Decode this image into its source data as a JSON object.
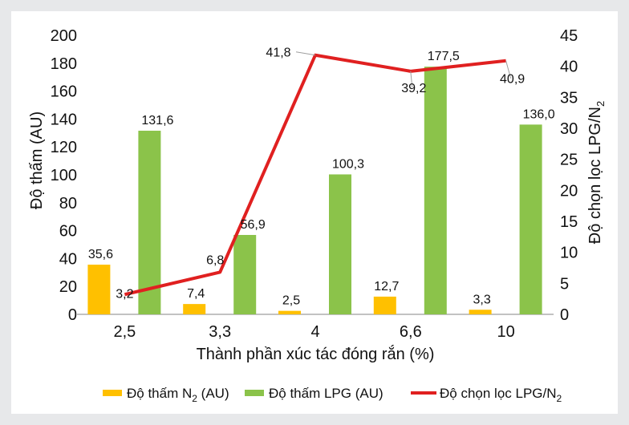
{
  "chart_data": {
    "type": "bar",
    "title": "",
    "categories": [
      "2,5",
      "3,3",
      "4",
      "6,6",
      "10"
    ],
    "series": [
      {
        "name": "Độ thấm N2 (AU)",
        "type": "bar",
        "axis": "left",
        "color": "#ffc000",
        "values": [
          35.6,
          7.4,
          2.5,
          12.7,
          3.3
        ],
        "labels": [
          "35,6",
          "7,4",
          "2,5",
          "12,7",
          "3,3"
        ]
      },
      {
        "name": "Độ thấm LPG (AU)",
        "type": "bar",
        "axis": "left",
        "color": "#8bc34a",
        "values": [
          131.6,
          56.9,
          100.3,
          177.5,
          136.0
        ],
        "labels": [
          "131,6",
          "56,9",
          "100,3",
          "177,5",
          "136,0"
        ]
      },
      {
        "name": "Độ chọn lọc LPG/N2",
        "type": "line",
        "axis": "right",
        "color": "#e02020",
        "values": [
          3.2,
          6.8,
          41.8,
          39.2,
          40.9
        ],
        "labels": [
          "3,2",
          "6,8",
          "41,8",
          "39,2",
          "40,9"
        ]
      }
    ],
    "xlabel": "Thành phần xúc tác đóng rắn (%)",
    "ylabel": "Độ thấm (AU)",
    "y2label": "Độ chọn lọc LPG/N2",
    "ylim": [
      0,
      200
    ],
    "y2lim": [
      0,
      45
    ],
    "yticks": [
      "0",
      "20",
      "40",
      "60",
      "80",
      "100",
      "120",
      "140",
      "160",
      "180",
      "200"
    ],
    "y2ticks": [
      "0",
      "5",
      "10",
      "15",
      "20",
      "25",
      "30",
      "35",
      "40",
      "45"
    ],
    "grid": false,
    "legend": {
      "position": "bottom",
      "items": [
        {
          "prefix": "Độ thấm N",
          "sub": "2",
          "suffix": " (AU)",
          "color": "#ffc000",
          "marker": "rect"
        },
        {
          "prefix": "Độ thấm LPG (AU)",
          "sub": "",
          "suffix": "",
          "color": "#8bc34a",
          "marker": "rect"
        },
        {
          "prefix": "Độ chọn lọc LPG/N",
          "sub": "2",
          "suffix": "",
          "color": "#e02020",
          "marker": "line"
        }
      ]
    }
  }
}
